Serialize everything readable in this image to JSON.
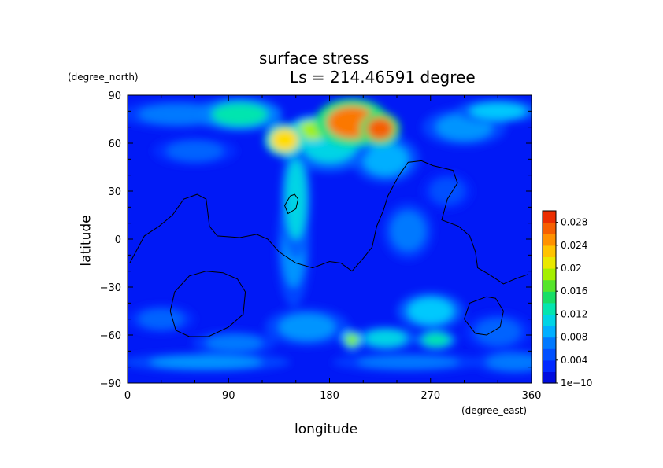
{
  "chart_data": {
    "type": "heatmap",
    "title": "surface stress",
    "subtitle": "Ls = 214.46591 degree",
    "xlabel": "longitude",
    "ylabel": "latitude",
    "x_unit": "(degree_east)",
    "y_unit": "(degree_north)",
    "xlim": [
      0,
      360
    ],
    "ylim": [
      -90,
      90
    ],
    "x_ticks": [
      "0",
      "90",
      "180",
      "270",
      "360"
    ],
    "y_ticks": [
      "90",
      "60",
      "30",
      "0",
      "−30",
      "−60",
      "−90"
    ],
    "colorbar": {
      "min": 1e-10,
      "max": 0.03,
      "labels": [
        "0.028",
        "0.024",
        "0.02",
        "0.016",
        "0.012",
        "0.008",
        "0.004",
        "1e−10"
      ],
      "label_values": [
        0.028,
        0.024,
        0.02,
        0.016,
        0.012,
        0.008,
        0.004,
        0.0
      ]
    },
    "background_level": 0.002,
    "features": [
      {
        "lon": 100,
        "lat": 78,
        "w": 25,
        "h": 7,
        "value": 0.013
      },
      {
        "lon": 45,
        "lat": 78,
        "w": 35,
        "h": 6,
        "value": 0.007
      },
      {
        "lon": 140,
        "lat": 62,
        "w": 12,
        "h": 7,
        "value": 0.022
      },
      {
        "lon": 165,
        "lat": 68,
        "w": 14,
        "h": 6,
        "value": 0.019
      },
      {
        "lon": 200,
        "lat": 73,
        "w": 22,
        "h": 10,
        "value": 0.026
      },
      {
        "lon": 225,
        "lat": 69,
        "w": 12,
        "h": 7,
        "value": 0.027
      },
      {
        "lon": 180,
        "lat": 60,
        "w": 25,
        "h": 12,
        "value": 0.011
      },
      {
        "lon": 230,
        "lat": 50,
        "w": 20,
        "h": 10,
        "value": 0.009
      },
      {
        "lon": 150,
        "lat": 25,
        "w": 9,
        "h": 25,
        "value": 0.011
      },
      {
        "lon": 148,
        "lat": -5,
        "w": 10,
        "h": 25,
        "value": 0.008
      },
      {
        "lon": 250,
        "lat": 5,
        "w": 15,
        "h": 12,
        "value": 0.007
      },
      {
        "lon": 60,
        "lat": 55,
        "w": 25,
        "h": 6,
        "value": 0.006
      },
      {
        "lon": 300,
        "lat": 70,
        "w": 25,
        "h": 8,
        "value": 0.008
      },
      {
        "lon": 330,
        "lat": 80,
        "w": 25,
        "h": 5,
        "value": 0.01
      },
      {
        "lon": 285,
        "lat": 30,
        "w": 15,
        "h": 8,
        "value": 0.005
      },
      {
        "lon": 30,
        "lat": -50,
        "w": 20,
        "h": 6,
        "value": 0.006
      },
      {
        "lon": 160,
        "lat": -55,
        "w": 25,
        "h": 8,
        "value": 0.008
      },
      {
        "lon": 200,
        "lat": -63,
        "w": 6,
        "h": 4,
        "value": 0.018
      },
      {
        "lon": 230,
        "lat": -62,
        "w": 18,
        "h": 5,
        "value": 0.011
      },
      {
        "lon": 270,
        "lat": -45,
        "w": 20,
        "h": 8,
        "value": 0.01
      },
      {
        "lon": 275,
        "lat": -63,
        "w": 12,
        "h": 4,
        "value": 0.013
      },
      {
        "lon": 95,
        "lat": -65,
        "w": 25,
        "h": 5,
        "value": 0.007
      },
      {
        "lon": 330,
        "lat": -58,
        "w": 20,
        "h": 8,
        "value": 0.006
      },
      {
        "lon": 70,
        "lat": -77,
        "w": 50,
        "h": 4,
        "value": 0.008
      },
      {
        "lon": 250,
        "lat": -77,
        "w": 45,
        "h": 4,
        "value": 0.007
      },
      {
        "lon": 345,
        "lat": -77,
        "w": 25,
        "h": 5,
        "value": 0.007
      }
    ],
    "contours": [
      [
        [
          2,
          -15
        ],
        [
          15,
          2
        ],
        [
          28,
          8
        ],
        [
          40,
          15
        ],
        [
          50,
          25
        ],
        [
          62,
          28
        ],
        [
          70,
          25
        ],
        [
          73,
          8
        ],
        [
          80,
          2
        ],
        [
          100,
          1
        ],
        [
          115,
          3
        ],
        [
          125,
          0
        ],
        [
          135,
          -8
        ],
        [
          150,
          -15
        ],
        [
          165,
          -18
        ],
        [
          180,
          -14
        ],
        [
          190,
          -15
        ],
        [
          200,
          -20
        ],
        [
          210,
          -12
        ],
        [
          218,
          -5
        ],
        [
          222,
          8
        ],
        [
          228,
          18
        ],
        [
          232,
          27
        ],
        [
          242,
          40
        ],
        [
          250,
          48
        ],
        [
          262,
          49
        ],
        [
          272,
          46
        ],
        [
          290,
          43
        ],
        [
          294,
          35
        ],
        [
          285,
          25
        ],
        [
          280,
          12
        ],
        [
          295,
          8
        ],
        [
          305,
          2
        ],
        [
          310,
          -8
        ],
        [
          312,
          -18
        ],
        [
          322,
          -22
        ],
        [
          335,
          -28
        ],
        [
          345,
          -25
        ],
        [
          357,
          -22
        ]
      ],
      [
        [
          70,
          -20
        ],
        [
          55,
          -23
        ],
        [
          42,
          -33
        ],
        [
          38,
          -45
        ],
        [
          43,
          -57
        ],
        [
          55,
          -61
        ],
        [
          72,
          -61
        ],
        [
          90,
          -55
        ],
        [
          103,
          -47
        ],
        [
          105,
          -33
        ],
        [
          98,
          -25
        ],
        [
          85,
          -21
        ],
        [
          70,
          -20
        ]
      ],
      [
        [
          145,
          27
        ],
        [
          140,
          21
        ],
        [
          143,
          16
        ],
        [
          150,
          19
        ],
        [
          152,
          25
        ],
        [
          149,
          28
        ],
        [
          145,
          27
        ]
      ],
      [
        [
          320,
          -36
        ],
        [
          305,
          -40
        ],
        [
          300,
          -50
        ],
        [
          310,
          -59
        ],
        [
          320,
          -60
        ],
        [
          332,
          -55
        ],
        [
          335,
          -45
        ],
        [
          328,
          -37
        ],
        [
          320,
          -36
        ]
      ]
    ]
  }
}
